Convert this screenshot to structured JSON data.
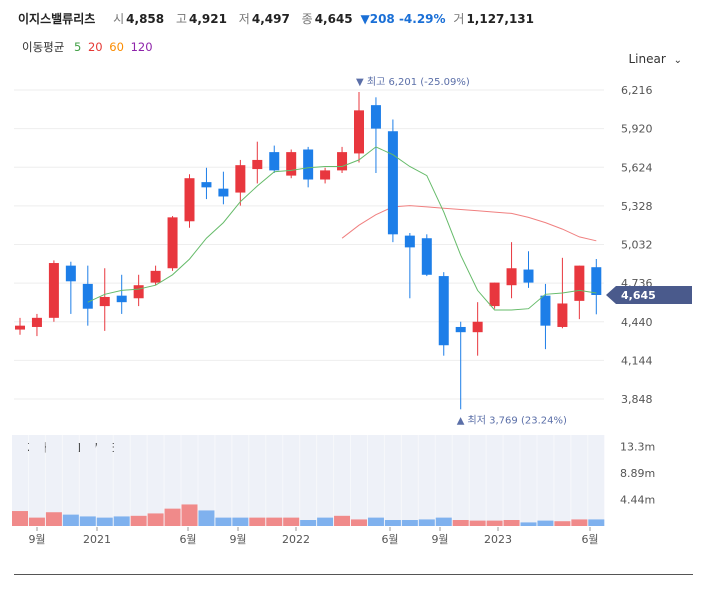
{
  "header": {
    "name": "이지스밸류리츠",
    "open_label": "시",
    "open": "4,858",
    "high_label": "고",
    "high": "4,921",
    "low_label": "저",
    "low": "4,497",
    "close_label": "종",
    "close": "4,645",
    "change": "▼208 -4.29%",
    "volume_label": "거",
    "volume": "1,127,131"
  },
  "ma_legend": {
    "label": "이동평균",
    "items": [
      {
        "text": "5",
        "color": "#43a047"
      },
      {
        "text": "20",
        "color": "#e53935"
      },
      {
        "text": "60",
        "color": "#fb8c00"
      },
      {
        "text": "120",
        "color": "#8e24aa"
      }
    ]
  },
  "scale_toggle": "Linear",
  "chart_data": {
    "type": "candlestick",
    "y_ticks": [
      "6,216",
      "5,920",
      "5,624",
      "5,328",
      "5,032",
      "4,736",
      "4,440",
      "4,144",
      "3,848"
    ],
    "ylim": [
      3769,
      6216
    ],
    "x_ticks": [
      "9월",
      "2021",
      "6월",
      "9월",
      "2022",
      "6월",
      "9월",
      "2023",
      "6월"
    ],
    "current_price": 4645,
    "current_price_label": "4,645",
    "high_annotation": "▼ 최고 6,201 (-25.09%)",
    "low_annotation": "▲ 최저 3,769 (23.24%)",
    "up_color": "#e8373e",
    "down_color": "#1d7ee8",
    "candles": [
      {
        "o": 4380,
        "h": 4470,
        "l": 4340,
        "c": 4410
      },
      {
        "o": 4400,
        "h": 4500,
        "l": 4330,
        "c": 4470
      },
      {
        "o": 4470,
        "h": 4910,
        "l": 4440,
        "c": 4890
      },
      {
        "o": 4870,
        "h": 4900,
        "l": 4500,
        "c": 4750
      },
      {
        "o": 4730,
        "h": 4870,
        "l": 4410,
        "c": 4540
      },
      {
        "o": 4560,
        "h": 4850,
        "l": 4370,
        "c": 4630
      },
      {
        "o": 4640,
        "h": 4800,
        "l": 4500,
        "c": 4590
      },
      {
        "o": 4620,
        "h": 4800,
        "l": 4560,
        "c": 4720
      },
      {
        "o": 4740,
        "h": 4870,
        "l": 4720,
        "c": 4830
      },
      {
        "o": 4850,
        "h": 5250,
        "l": 4830,
        "c": 5240
      },
      {
        "o": 5210,
        "h": 5570,
        "l": 5160,
        "c": 5540
      },
      {
        "o": 5510,
        "h": 5620,
        "l": 5380,
        "c": 5470
      },
      {
        "o": 5460,
        "h": 5590,
        "l": 5340,
        "c": 5400
      },
      {
        "o": 5430,
        "h": 5680,
        "l": 5330,
        "c": 5640
      },
      {
        "o": 5610,
        "h": 5820,
        "l": 5500,
        "c": 5680
      },
      {
        "o": 5740,
        "h": 5790,
        "l": 5580,
        "c": 5600
      },
      {
        "o": 5560,
        "h": 5760,
        "l": 5540,
        "c": 5740
      },
      {
        "o": 5760,
        "h": 5780,
        "l": 5470,
        "c": 5530
      },
      {
        "o": 5530,
        "h": 5620,
        "l": 5500,
        "c": 5600
      },
      {
        "o": 5600,
        "h": 5780,
        "l": 5580,
        "c": 5740
      },
      {
        "o": 5730,
        "h": 6201,
        "l": 5660,
        "c": 6060
      },
      {
        "o": 6100,
        "h": 6160,
        "l": 5580,
        "c": 5920
      },
      {
        "o": 5900,
        "h": 5990,
        "l": 5050,
        "c": 5110
      },
      {
        "o": 5100,
        "h": 5120,
        "l": 4620,
        "c": 5010
      },
      {
        "o": 5080,
        "h": 5110,
        "l": 4790,
        "c": 4800
      },
      {
        "o": 4790,
        "h": 4820,
        "l": 4180,
        "c": 4260
      },
      {
        "o": 4400,
        "h": 4440,
        "l": 3769,
        "c": 4360
      },
      {
        "o": 4360,
        "h": 4590,
        "l": 4180,
        "c": 4440
      },
      {
        "o": 4560,
        "h": 4740,
        "l": 4540,
        "c": 4740
      },
      {
        "o": 4720,
        "h": 5050,
        "l": 4620,
        "c": 4850
      },
      {
        "o": 4840,
        "h": 4980,
        "l": 4700,
        "c": 4740
      },
      {
        "o": 4640,
        "h": 4730,
        "l": 4230,
        "c": 4410
      },
      {
        "o": 4400,
        "h": 4930,
        "l": 4390,
        "c": 4580
      },
      {
        "o": 4600,
        "h": 4870,
        "l": 4460,
        "c": 4870
      },
      {
        "o": 4858,
        "h": 4921,
        "l": 4497,
        "c": 4645
      }
    ],
    "ma5": [
      null,
      null,
      null,
      null,
      4590,
      4650,
      4680,
      4690,
      4720,
      4800,
      4920,
      5080,
      5200,
      5360,
      5480,
      5590,
      5600,
      5620,
      5630,
      5630,
      5680,
      5780,
      5720,
      5630,
      5560,
      5280,
      4950,
      4680,
      4530,
      4530,
      4540,
      4650,
      4660,
      4680,
      4660
    ],
    "ma20": [
      null,
      null,
      null,
      null,
      null,
      null,
      null,
      null,
      null,
      null,
      null,
      null,
      null,
      null,
      null,
      null,
      null,
      null,
      null,
      5080,
      5180,
      5260,
      5320,
      5330,
      5320,
      5310,
      5300,
      5290,
      5280,
      5270,
      5240,
      5200,
      5150,
      5090,
      5060
    ],
    "volume_title": "거래량 1,127,131",
    "volume_ticks": [
      "13.3m",
      "8.89m",
      "4.44m"
    ],
    "volume_max": 15.2,
    "volumes": [
      2.5,
      1.4,
      2.3,
      1.9,
      1.6,
      1.4,
      1.6,
      1.7,
      2.1,
      2.9,
      3.6,
      2.6,
      1.4,
      1.4,
      1.4,
      1.4,
      1.4,
      1.0,
      1.4,
      1.7,
      1.1,
      1.4,
      1.0,
      1.0,
      1.1,
      1.4,
      1.0,
      0.9,
      0.9,
      1.0,
      0.6,
      0.9,
      0.8,
      1.1,
      1.1
    ],
    "volume_up": [
      true,
      true,
      true,
      false,
      false,
      false,
      false,
      true,
      true,
      true,
      true,
      false,
      false,
      false,
      true,
      true,
      true,
      false,
      false,
      true,
      true,
      false,
      false,
      false,
      false,
      false,
      true,
      true,
      true,
      true,
      false,
      false,
      true,
      true,
      false
    ]
  }
}
